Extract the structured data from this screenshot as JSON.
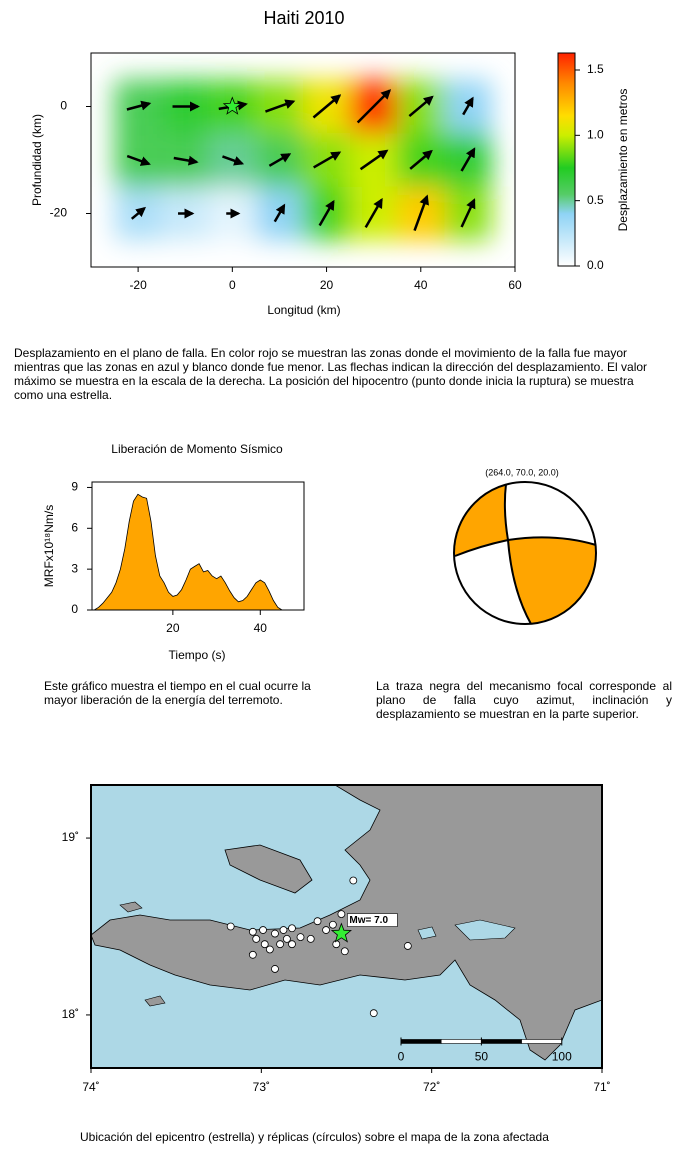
{
  "chart_data": [
    {
      "type": "slip_map",
      "title": "Haiti 2010",
      "xlabel": "Longitud (km)",
      "ylabel": "Profundidad (km)",
      "xlim": [
        -30,
        60
      ],
      "xticks": [
        -20,
        0,
        20,
        40,
        60
      ],
      "ylim": [
        -30,
        10
      ],
      "yticks": [
        0,
        -20
      ],
      "grid_x": [
        -20,
        -10,
        0,
        10,
        20,
        30,
        40,
        50
      ],
      "grid_y": [
        0,
        -10,
        -20
      ],
      "slip": [
        [
          0.6,
          0.7,
          0.8,
          0.9,
          1.1,
          1.6,
          0.9,
          0.4
        ],
        [
          0.6,
          0.6,
          0.5,
          0.6,
          0.9,
          1.0,
          0.8,
          0.7
        ],
        [
          0.3,
          0.2,
          0.1,
          0.4,
          0.8,
          1.0,
          1.2,
          0.9
        ]
      ],
      "rake": [
        [
          15,
          0,
          10,
          20,
          40,
          45,
          40,
          60
        ],
        [
          -20,
          -10,
          -20,
          30,
          30,
          35,
          40,
          60
        ],
        [
          40,
          0,
          0,
          60,
          60,
          60,
          70,
          65
        ]
      ],
      "hypocenter": [
        0,
        0
      ],
      "hypocenter_color": "#33ee33",
      "colorbar": {
        "label": "Desplazamiento en metros",
        "lim": [
          0,
          1.63
        ],
        "ticks": [
          {
            "value": 0,
            "label": "0.0"
          },
          {
            "value": 0.5,
            "label": "0.5"
          },
          {
            "value": 1.0,
            "label": "1.0"
          },
          {
            "value": 1.5,
            "label": "1.5"
          }
        ],
        "colorscale": [
          [
            0,
            "#ffffff"
          ],
          [
            0.4,
            "#8fd3f5"
          ],
          [
            0.55,
            "#55cc66"
          ],
          [
            0.75,
            "#22cc22"
          ],
          [
            1.0,
            "#ccee00"
          ],
          [
            1.15,
            "#ffdd00"
          ],
          [
            1.4,
            "#ff8800"
          ],
          [
            1.63,
            "#ff2200"
          ]
        ]
      }
    },
    {
      "type": "area",
      "title": "Liberación de Momento Sísmico",
      "xlabel": "Tiempo (s)",
      "ylabel": "MRFx10¹⁸Nm/s",
      "xlim": [
        1.5,
        50
      ],
      "xticks": [
        20,
        40
      ],
      "ylim": [
        0,
        9.4
      ],
      "yticks": [
        0,
        3,
        6,
        9
      ],
      "color": "#ffa500",
      "x": [
        2,
        3,
        4,
        5,
        6,
        7,
        8,
        9,
        10,
        11,
        12,
        13,
        14,
        15,
        16,
        17,
        18,
        19,
        20,
        21,
        22,
        23,
        24,
        25,
        26,
        27,
        28,
        29,
        30,
        31,
        32,
        33,
        34,
        35,
        36,
        37,
        38,
        39,
        40,
        41,
        42,
        43,
        44,
        45
      ],
      "values": [
        0,
        0.2,
        0.5,
        0.9,
        1.3,
        2.0,
        3.0,
        4.5,
        6.5,
        8.0,
        8.5,
        8.3,
        8.2,
        6.5,
        4.0,
        2.5,
        2.0,
        1.3,
        1.0,
        1.1,
        1.5,
        2.2,
        3.0,
        3.2,
        3.4,
        2.8,
        2.9,
        2.5,
        2.3,
        2.5,
        2.0,
        1.4,
        0.9,
        0.6,
        0.7,
        1.0,
        1.5,
        2.0,
        2.2,
        2.0,
        1.4,
        0.7,
        0.2,
        0
      ]
    },
    {
      "type": "beachball",
      "label": "(264.0,  70.0,  20.0)",
      "color": "#ffa500"
    },
    {
      "type": "map",
      "xlim": [
        -74,
        -71
      ],
      "ylim": [
        17.7,
        19.3
      ],
      "xticks": [
        {
          "value": -74,
          "label": "74˚"
        },
        {
          "value": -73,
          "label": "73˚"
        },
        {
          "value": -72,
          "label": "72˚"
        },
        {
          "value": -71,
          "label": "71˚"
        }
      ],
      "yticks": [
        {
          "value": 18,
          "label": "18˚"
        },
        {
          "value": 19,
          "label": "19˚"
        }
      ],
      "epicenter": {
        "lon": -72.53,
        "lat": 18.46,
        "label": "Mw= 7.0",
        "color": "#33ee33"
      },
      "aftershocks": {
        "lon": [
          -73.18,
          -73.05,
          -72.99,
          -73.03,
          -72.98,
          -73.05,
          -72.92,
          -72.87,
          -72.82,
          -72.85,
          -72.89,
          -72.82,
          -72.95,
          -72.77,
          -72.71,
          -72.67,
          -72.62,
          -72.58,
          -72.53,
          -72.56,
          -72.51,
          -72.46,
          -72.14,
          -72.34,
          -72.92
        ],
        "lat": [
          18.5,
          18.47,
          18.48,
          18.43,
          18.4,
          18.34,
          18.46,
          18.48,
          18.49,
          18.43,
          18.4,
          18.4,
          18.37,
          18.44,
          18.43,
          18.53,
          18.48,
          18.51,
          18.57,
          18.4,
          18.36,
          18.76,
          18.39,
          18.01,
          18.26
        ]
      },
      "scale_bar": {
        "lon": -72.18,
        "lat": 17.85,
        "ticks": [
          0,
          50,
          100
        ]
      }
    }
  ],
  "captions": [
    "Desplazamiento en el plano de falla.  En color rojo se muestran las zonas donde el movimiento de la falla fue mayor mientras que las zonas en azul y blanco donde fue menor.  Las flechas indican la dirección del desplazamiento.  El valor máximo se muestra en la escala de la derecha.  La posición del hipocentro (punto donde inicia la ruptura) se muestra como una estrella.",
    "Este gráfico muestra el tiempo en el cual ocurre la mayor liberación de la energía del terremoto.",
    "La traza negra del mecanismo focal corresponde al plano de falla cuyo azimut, inclinación y desplazamiento se muestran en la parte superior.",
    "Ubicación del epicentro (estrella) y réplicas (círculos) sobre el mapa de la zona afectada"
  ]
}
